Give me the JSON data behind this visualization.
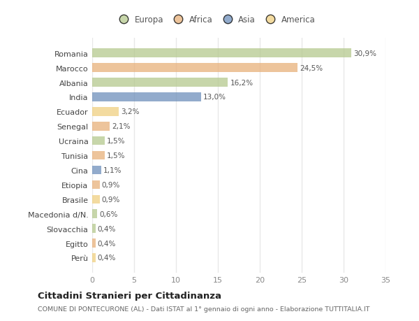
{
  "categories": [
    "Romania",
    "Marocco",
    "Albania",
    "India",
    "Ecuador",
    "Senegal",
    "Ucraina",
    "Tunisia",
    "Cina",
    "Etiopia",
    "Brasile",
    "Macedonia d/N.",
    "Slovacchia",
    "Egitto",
    "Perù"
  ],
  "values": [
    30.9,
    24.5,
    16.2,
    13.0,
    3.2,
    2.1,
    1.5,
    1.5,
    1.1,
    0.9,
    0.9,
    0.6,
    0.4,
    0.4,
    0.4
  ],
  "labels": [
    "30,9%",
    "24,5%",
    "16,2%",
    "13,0%",
    "3,2%",
    "2,1%",
    "1,5%",
    "1,5%",
    "1,1%",
    "0,9%",
    "0,9%",
    "0,6%",
    "0,4%",
    "0,4%",
    "0,4%"
  ],
  "colors": [
    "#b5c98e",
    "#e8b07a",
    "#b5c98e",
    "#6e8fbb",
    "#f0d080",
    "#e8b07a",
    "#b5c98e",
    "#e8b07a",
    "#6e8fbb",
    "#e8b07a",
    "#f0d080",
    "#b5c98e",
    "#b5c98e",
    "#e8b07a",
    "#f0d080"
  ],
  "legend_labels": [
    "Europa",
    "Africa",
    "Asia",
    "America"
  ],
  "legend_colors": [
    "#b5c98e",
    "#e8b07a",
    "#6e8fbb",
    "#f0d080"
  ],
  "xlim": [
    0,
    35
  ],
  "xticks": [
    0,
    5,
    10,
    15,
    20,
    25,
    30,
    35
  ],
  "title": "Cittadini Stranieri per Cittadinanza",
  "subtitle": "COMUNE DI PONTECURONE (AL) - Dati ISTAT al 1° gennaio di ogni anno - Elaborazione TUTTITALIA.IT",
  "bg_color": "#ffffff",
  "grid_color": "#e8e8e8",
  "bar_alpha": 0.75
}
